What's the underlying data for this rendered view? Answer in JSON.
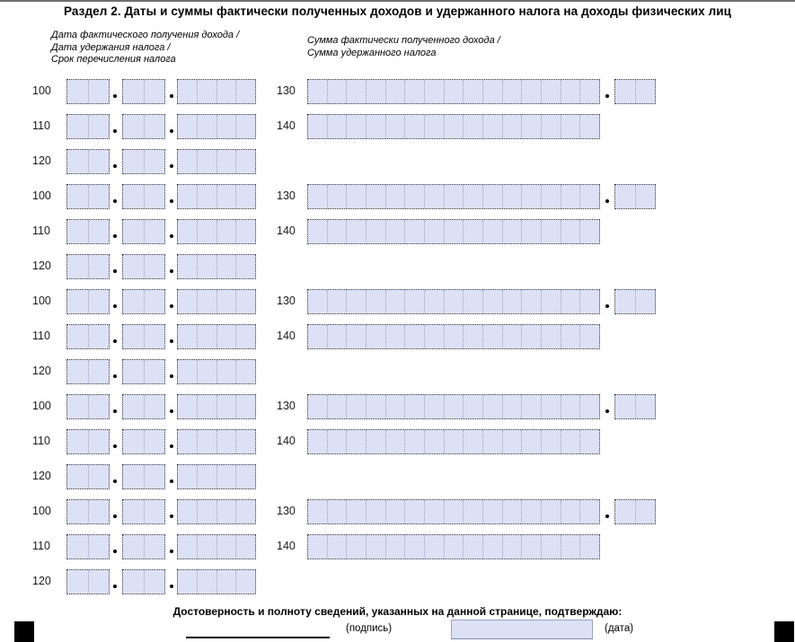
{
  "title": "Раздел 2. Даты и суммы фактически полученных доходов и удержанного налога на доходы физических лиц",
  "headers": {
    "left": [
      "Дата фактического получения дохода /",
      "Дата удержания налога /",
      "Срок перечисления налога"
    ],
    "right": [
      "Сумма фактически полученного дохода /",
      "Сумма удержанного налога"
    ]
  },
  "field_codes": {
    "income_date": "100",
    "withhold_date": "110",
    "transfer_deadline": "120",
    "income_sum": "130",
    "tax_sum": "140"
  },
  "blocks_count": 5,
  "field_structure": {
    "day_cells": 2,
    "month_cells": 2,
    "year_cells": 4,
    "sum_cells": 15,
    "kopeck_cells": 2
  },
  "fields_empty_value": "",
  "footer": {
    "confirm_text": "Достоверность и полноту сведений, указанных на данной странице, подтверждаю:",
    "signature_label": "(подпись)",
    "date_label": "(дата)"
  },
  "colors": {
    "field_fill": "#dce1f5",
    "outer_dotted_border": "#3c3c3c",
    "inner_dotted_border": "#9ba3c2",
    "registration_mark": "#000000"
  }
}
